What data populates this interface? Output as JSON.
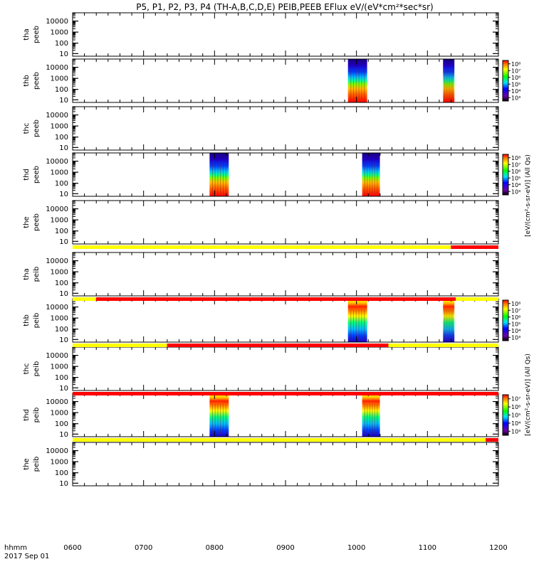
{
  "chart_data": {
    "type": "heatmap",
    "title": "P5, P1, P2, P3, P4 (TH-A,B,C,D,E) PEIB,PEEB EFlux eV/(eV*cm²*sec*sr)",
    "x_axis": {
      "ticks": [
        "0600",
        "0700",
        "0800",
        "0900",
        "1000",
        "1100",
        "1200"
      ],
      "range": [
        "0600",
        "1200"
      ],
      "label_row1": "hhmm",
      "label_row2": "2017 Sep 01"
    },
    "y_ticks": [
      "10",
      "100",
      "1000",
      "10000"
    ],
    "colorbar_labels": {
      "peeb_units": "[eV/(cm²-s-sr-eV)]  (All Qs)",
      "peib_units": "[eV/(cm²-s-sr-eV)]  (All Qs)",
      "peeb_ticks": [
        "10³",
        "10⁴",
        "10⁵",
        "10⁶",
        "10⁷",
        "10⁸"
      ],
      "peib_ticks_b": [
        "10³",
        "10⁴",
        "10⁵",
        "10⁶",
        "10⁷",
        "10⁸"
      ],
      "peib_ticks_d": [
        "10³",
        "10⁴",
        "10⁵",
        "10⁶",
        "10⁷"
      ]
    },
    "panels": [
      {
        "label1": "tha",
        "label2": "peeb",
        "intervals": []
      },
      {
        "label1": "thb",
        "label2": "peeb",
        "intervals": [
          [
            9.88,
            10.15
          ],
          [
            11.22,
            11.38
          ]
        ]
      },
      {
        "label1": "thc",
        "label2": "peeb",
        "intervals": []
      },
      {
        "label1": "thd",
        "label2": "peeb",
        "intervals": [
          [
            7.93,
            8.2
          ],
          [
            10.08,
            10.33
          ]
        ]
      },
      {
        "label1": "the",
        "label2": "peeb",
        "intervals": []
      },
      {
        "label1": "tha",
        "label2": "peib",
        "intervals": []
      },
      {
        "label1": "thb",
        "label2": "peib",
        "intervals": [
          [
            9.88,
            10.15
          ],
          [
            11.22,
            11.38
          ]
        ]
      },
      {
        "label1": "thc",
        "label2": "peib",
        "intervals": []
      },
      {
        "label1": "thd",
        "label2": "peib",
        "intervals": [
          [
            7.93,
            8.2
          ],
          [
            10.08,
            10.33
          ]
        ]
      },
      {
        "label1": "the",
        "label2": "peib",
        "intervals": []
      }
    ],
    "mode_bars": [
      {
        "after_panel": 4,
        "segments": [
          [
            "yellow",
            6.0,
            11.33
          ],
          [
            "red",
            11.33,
            12.0
          ]
        ]
      },
      {
        "after_panel": 5,
        "segments": [
          [
            "yellow",
            6.0,
            6.33
          ],
          [
            "red",
            6.33,
            11.4
          ],
          [
            "yellow",
            11.4,
            12.0
          ]
        ]
      },
      {
        "after_panel": 6,
        "segments": [
          [
            "yellow",
            6.0,
            7.33
          ],
          [
            "red",
            7.33,
            10.45
          ],
          [
            "yellow",
            10.45,
            12.0
          ]
        ]
      },
      {
        "after_panel": 7,
        "segments": [
          [
            "red",
            6.0,
            12.0
          ]
        ]
      },
      {
        "after_panel": 8,
        "segments": [
          [
            "yellow",
            6.0,
            11.82
          ],
          [
            "red",
            11.82,
            12.0
          ]
        ]
      }
    ],
    "colors": {
      "yellow": "#ffff00",
      "red": "#ff0000"
    }
  }
}
